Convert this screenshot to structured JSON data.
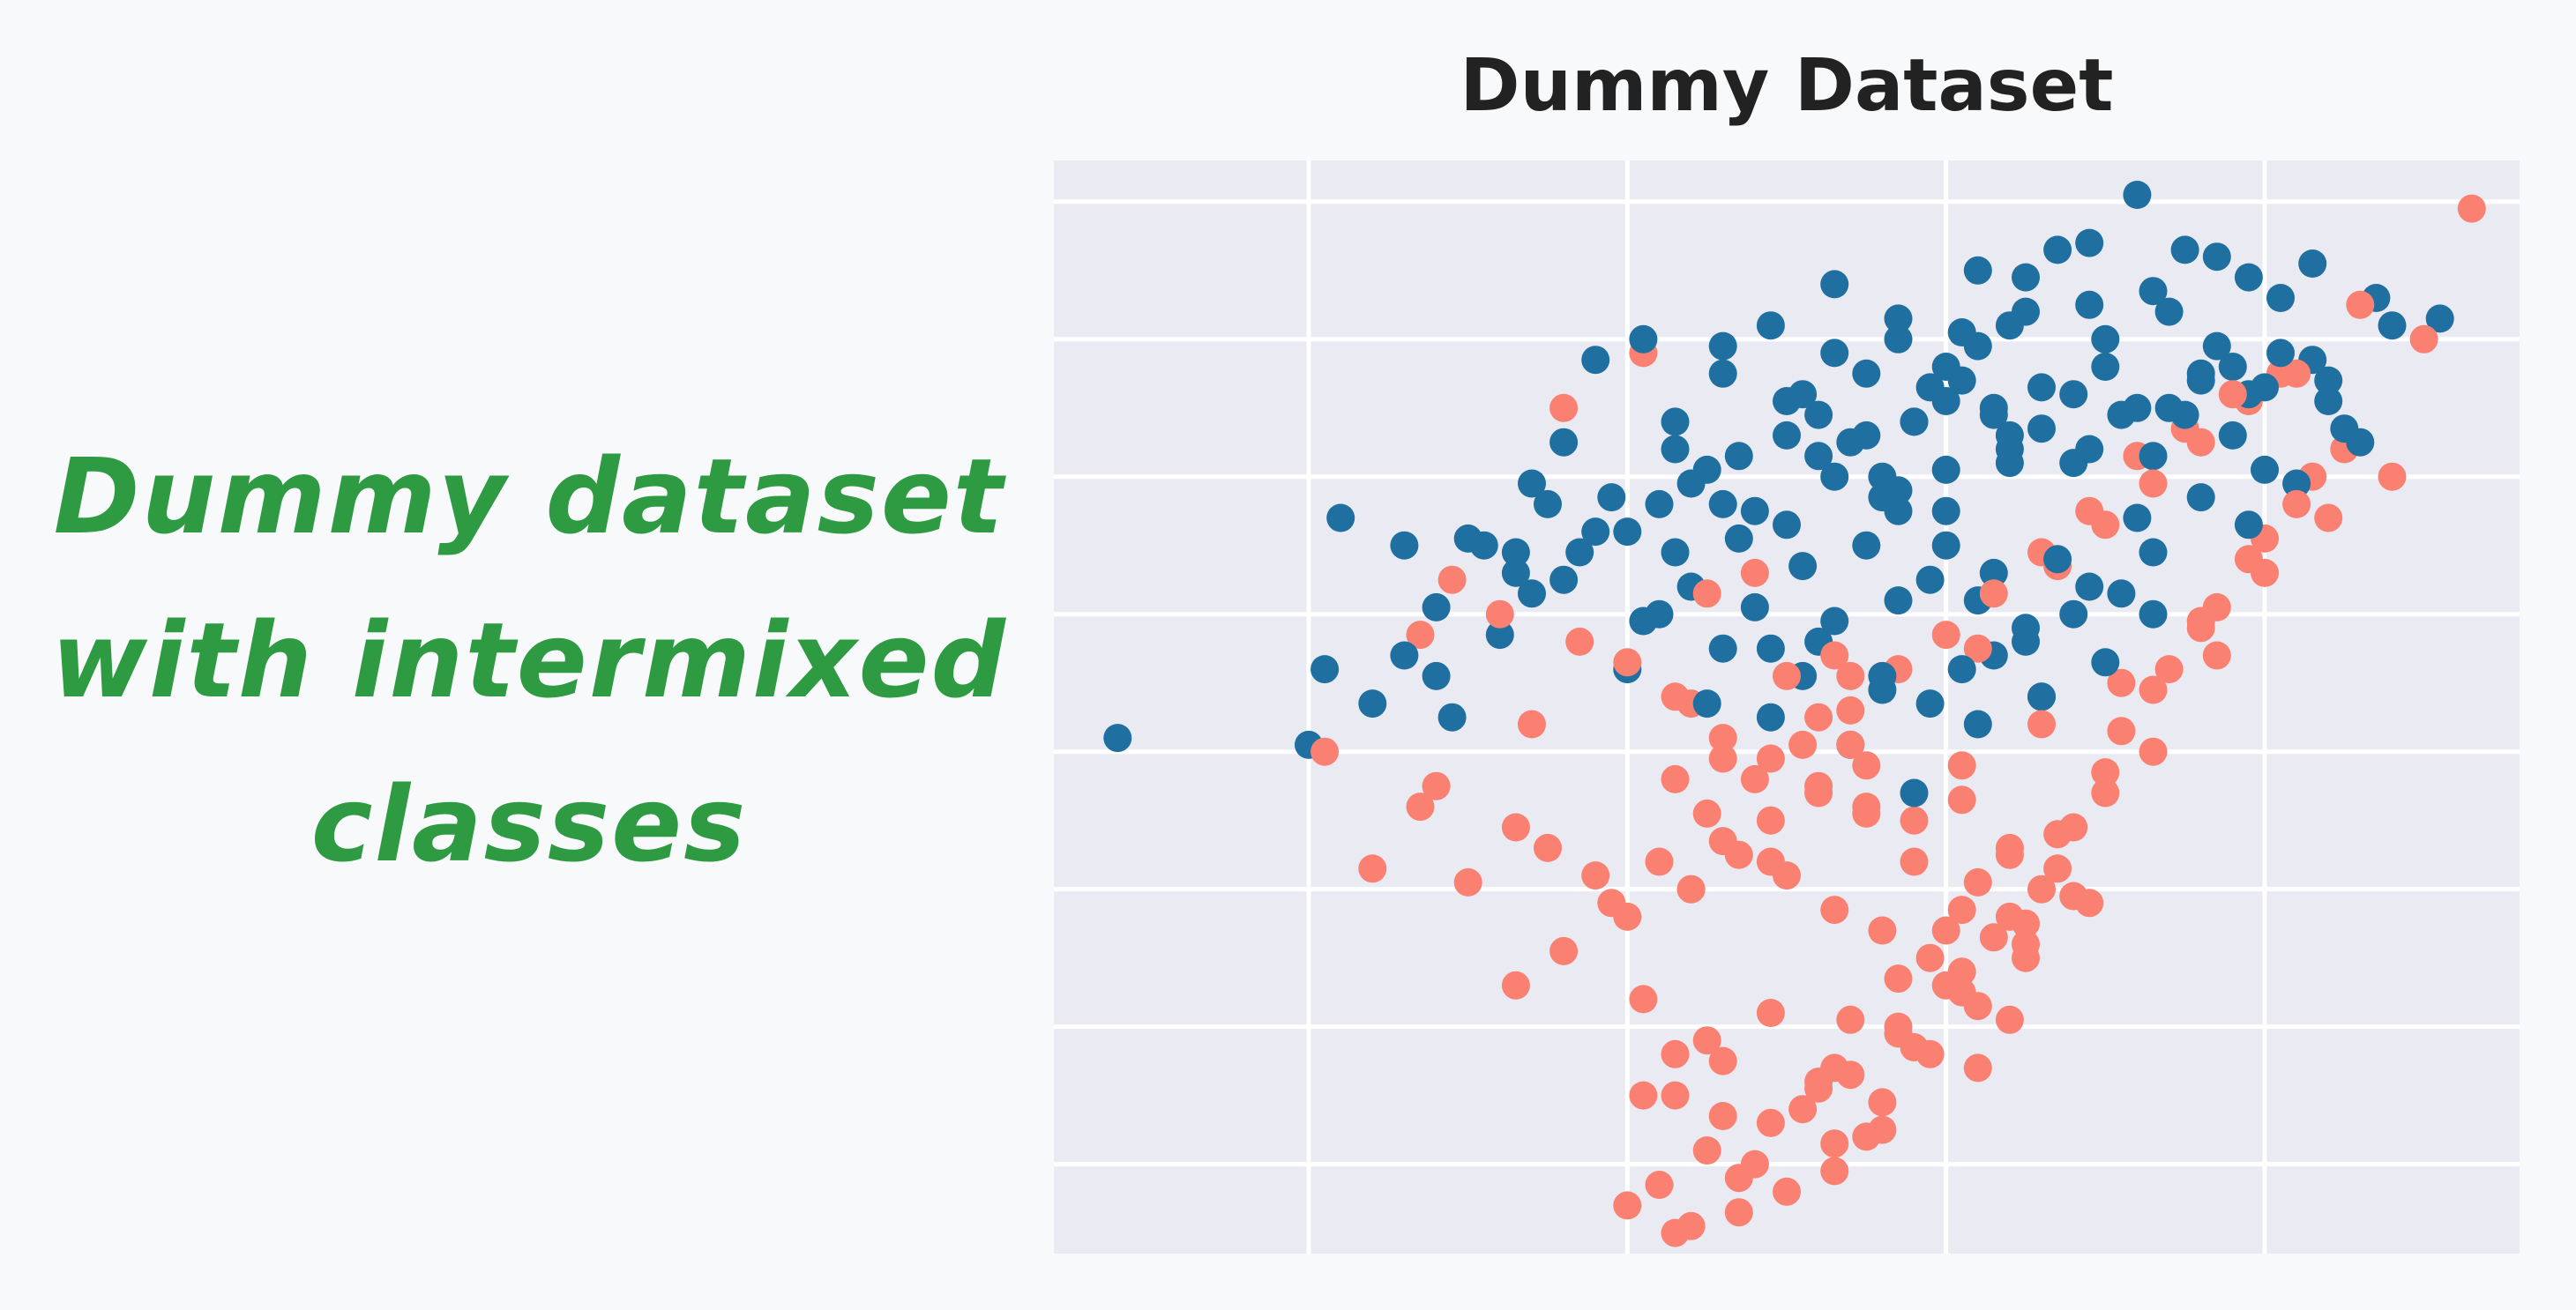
{
  "annotation": {
    "lines": [
      "Dummy dataset",
      "with intermixed",
      "classes"
    ],
    "color": "#2e9b43"
  },
  "chart_data": {
    "type": "scatter",
    "title": "Dummy Dataset",
    "xlabel": "",
    "ylabel": "",
    "xlim": [
      -3.6,
      5.6
    ],
    "ylim": [
      -8.3,
      7.6
    ],
    "xticks": [
      -2,
      0,
      2,
      4
    ],
    "yticks": [
      -7,
      -5,
      -3,
      -1,
      1,
      3,
      5,
      7
    ],
    "tick_labels_shown": false,
    "grid": true,
    "background": "#eaeaf2",
    "series": [
      {
        "color": "#1f6fa0",
        "x": [
          -3.2,
          -2.0,
          -1.6,
          -1.4,
          -1.2,
          -1.0,
          -0.6,
          -1.9,
          -1.8,
          -1.4,
          -1.2,
          -0.9,
          -0.7,
          -1.1,
          -0.5,
          -0.4,
          -0.2,
          0.1,
          0.3,
          0.6,
          0.9,
          1.3,
          1.7,
          2.2,
          2.5,
          2.9,
          3.2,
          3.5,
          3.9,
          4.3,
          4.7,
          5.1,
          -0.8,
          -0.6,
          -0.3,
          0.0,
          0.2,
          0.5,
          0.7,
          1.0,
          1.2,
          1.4,
          1.6,
          1.8,
          2.0,
          2.1,
          2.3,
          2.4,
          2.6,
          2.8,
          3.0,
          3.1,
          3.3,
          3.4,
          3.6,
          3.7,
          3.8,
          4.0,
          4.1,
          4.2,
          4.4,
          4.5,
          0.1,
          0.4,
          0.8,
          1.1,
          1.5,
          1.9,
          2.2,
          2.7,
          3.2,
          3.6,
          4.0,
          4.6,
          -0.2,
          0.3,
          0.6,
          1.0,
          1.3,
          1.7,
          2.0,
          2.4,
          2.9,
          3.5,
          3.9,
          1.2,
          1.6,
          1.9,
          2.3,
          2.5,
          2.8,
          3.1,
          0.9,
          1.4,
          1.8,
          2.2,
          2.6,
          3.0,
          2.9,
          3.3,
          3.7,
          4.1,
          2.1,
          2.5,
          2.7,
          1.3,
          1.7,
          2.0,
          2.4,
          0.6,
          1.0,
          1.5,
          1.9,
          2.3,
          -0.4,
          0.2,
          0.6,
          1.1,
          1.6,
          2.1,
          2.6,
          3.3,
          3.9,
          4.8,
          0.4,
          0.8,
          1.2,
          1.6,
          2.0,
          2.4,
          2.8,
          3.2,
          3.6,
          4.3,
          -0.7,
          -0.1,
          0.3,
          0.7,
          1.1,
          1.5,
          1.8,
          2.2,
          2.6,
          3.0,
          3.4,
          3.8,
          4.4,
          1.7,
          2.0,
          2.3,
          0.0,
          0.5,
          0.9,
          1.3,
          1.7,
          2.5,
          2.9,
          3.3
        ],
        "y": [
          -0.8,
          -0.9,
          -0.3,
          0.4,
          1.1,
          2.1,
          2.9,
          0.2,
          2.4,
          2.0,
          0.1,
          2.0,
          1.9,
          -0.5,
          2.6,
          3.5,
          4.7,
          5.0,
          3.8,
          4.9,
          5.2,
          4.8,
          5.3,
          6.0,
          5.9,
          6.4,
          7.1,
          6.3,
          5.9,
          6.1,
          5.6,
          5.3,
          0.7,
          1.3,
          1.9,
          2.2,
          2.6,
          3.1,
          3.3,
          3.6,
          3.9,
          3.5,
          3.0,
          3.8,
          4.1,
          4.4,
          4.0,
          3.4,
          3.7,
          4.2,
          4.6,
          3.9,
          3.3,
          4.0,
          4.5,
          4.9,
          3.6,
          4.3,
          4.8,
          2.9,
          4.1,
          3.7,
          0.9,
          1.4,
          1.1,
          1.7,
          2.0,
          1.5,
          1.2,
          1.8,
          2.4,
          2.7,
          3.1,
          3.5,
          2.2,
          1.9,
          2.6,
          2.3,
          3.0,
          2.8,
          2.5,
          3.2,
          3.4,
          3.9,
          4.2,
          0.6,
          0.1,
          -0.3,
          0.4,
          0.8,
          1.0,
          1.3,
          -0.5,
          -0.9,
          -1.6,
          -0.6,
          -0.2,
          0.3,
          5.5,
          5.7,
          6.2,
          5.6,
          5.1,
          5.4,
          6.3,
          5.8,
          5.0,
          4.6,
          5.2,
          4.5,
          4.1,
          3.6,
          4.3,
          3.9,
          1.5,
          1.0,
          0.5,
          0.1,
          -0.1,
          0.2,
          -0.2,
          1.9,
          2.3,
          5.2,
          2.9,
          2.5,
          3.3,
          2.7,
          3.1,
          3.6,
          3.2,
          4.0,
          4.4,
          4.7,
          1.6,
          2.7,
          3.4,
          2.1,
          4.2,
          4.5,
          3.8,
          4.9,
          4.3,
          5.0,
          5.4,
          4.6,
          4.4,
          2.5,
          2.0,
          1.6,
          0.2,
          -0.3,
          0.5,
          0.9,
          1.2,
          0.6,
          1.4,
          1.0
        ]
      },
      {
        "color": "#fa8072",
        "x": [
          5.3,
          5.0,
          4.6,
          4.1,
          3.8,
          3.5,
          3.2,
          2.9,
          2.6,
          2.3,
          2.0,
          1.7,
          1.4,
          1.1,
          0.8,
          0.5,
          0.2,
          -0.1,
          -0.4,
          -0.7,
          -1.0,
          -1.3,
          -1.6,
          -1.9,
          -0.6,
          -0.3,
          0.0,
          0.3,
          0.6,
          0.9,
          1.2,
          1.5,
          1.8,
          2.1,
          2.4,
          2.7,
          3.0,
          3.3,
          3.6,
          3.9,
          4.2,
          4.5,
          0.4,
          0.7,
          1.0,
          1.3,
          1.6,
          1.9,
          2.2,
          2.5,
          2.8,
          3.1,
          3.4,
          3.7,
          4.0,
          4.3,
          0.1,
          0.5,
          0.9,
          1.3,
          1.7,
          2.1,
          2.5,
          2.9,
          3.3,
          3.7,
          0.3,
          0.6,
          0.9,
          1.2,
          1.5,
          1.8,
          2.1,
          2.4,
          2.7,
          3.0,
          0.2,
          0.5,
          0.8,
          1.1,
          1.4,
          1.7,
          2.0,
          2.3,
          2.6,
          0.0,
          0.4,
          0.7,
          1.0,
          1.3,
          1.6,
          1.9,
          2.2,
          2.5,
          2.8,
          0.6,
          0.9,
          1.2,
          1.5,
          1.8,
          2.1,
          2.4,
          0.1,
          0.3,
          0.6,
          1.2,
          1.4,
          1.7,
          2.0,
          0.3,
          0.7,
          1.3,
          1.6,
          2.2,
          2.4,
          0.3,
          0.6,
          1.2,
          1.4,
          1.0,
          1.3,
          0.5,
          0.8,
          -0.8,
          -0.4,
          -1.1,
          -1.3,
          -1.2,
          -0.7,
          -0.5,
          -0.2,
          0.0,
          0.4,
          0.9,
          1.5,
          2.1,
          2.6,
          3.1,
          3.6,
          4.0,
          4.4,
          4.8,
          2.7,
          3.0,
          3.3,
          3.6,
          3.9,
          4.2,
          0.1,
          0.4,
          1.4,
          2.2
        ],
        "y": [
          6.9,
          5.0,
          5.5,
          4.5,
          4.2,
          3.7,
          3.3,
          2.5,
          1.9,
          1.3,
          0.7,
          0.2,
          -0.4,
          -0.9,
          -1.4,
          -1.9,
          -2.6,
          -3.2,
          -3.9,
          -4.4,
          -2.9,
          -1.8,
          -2.7,
          -1.0,
          -0.6,
          0.6,
          0.3,
          -0.2,
          -0.8,
          -1.1,
          -1.5,
          -1.2,
          -2.0,
          -1.7,
          -2.4,
          -2.2,
          -1.3,
          -0.1,
          0.9,
          1.8,
          2.6,
          3.4,
          -3.0,
          -2.5,
          -2.8,
          -3.3,
          -3.6,
          -4.0,
          -2.9,
          -3.5,
          -2.1,
          -0.7,
          0.2,
          1.1,
          2.1,
          3.0,
          -4.6,
          -5.2,
          -4.8,
          -5.6,
          -5.0,
          -4.5,
          -3.8,
          -3.2,
          -1.0,
          0.4,
          -6.0,
          -5.5,
          -6.4,
          -5.9,
          -6.6,
          -5.3,
          -4.2,
          -3.4,
          -2.7,
          -1.6,
          -7.3,
          -6.8,
          -7.0,
          -6.2,
          -5.7,
          -5.1,
          -4.4,
          -3.7,
          -3.0,
          -7.6,
          -7.9,
          -7.2,
          -7.4,
          -6.7,
          -6.1,
          -5.4,
          -4.7,
          -4.0,
          -3.1,
          -2.3,
          -2.0,
          -1.6,
          -1.9,
          -2.6,
          -3.3,
          -2.5,
          -6.0,
          -5.4,
          -6.3,
          -5.8,
          -4.9,
          -4.3,
          -3.6,
          -8.0,
          -7.7,
          -7.1,
          -6.5,
          -5.6,
          -4.9,
          -1.4,
          -1.1,
          -0.5,
          -0.9,
          0.1,
          0.4,
          1.3,
          1.6,
          1.0,
          4.0,
          1.5,
          0.7,
          -1.5,
          -2.1,
          -2.4,
          -2.8,
          -3.4,
          -3.0,
          -2.6,
          -1.8,
          -1.2,
          -0.6,
          0.0,
          0.8,
          1.6,
          2.4,
          3.0,
          1.7,
          2.3,
          2.9,
          3.5,
          4.1,
          4.5,
          4.8,
          -0.3,
          0.1,
          0.5
        ]
      }
    ]
  }
}
